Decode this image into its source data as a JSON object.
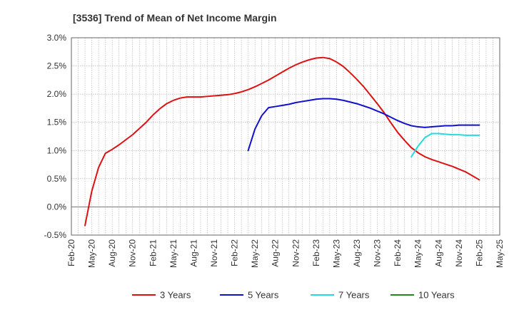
{
  "chart_data": {
    "type": "line",
    "title": "[3536]  Trend of Mean of Net Income Margin",
    "xlabel": "",
    "ylabel": "",
    "ylim": [
      -0.5,
      3.0
    ],
    "y_ticks": [
      -0.5,
      0.0,
      0.5,
      1.0,
      1.5,
      2.0,
      2.5,
      3.0
    ],
    "y_tick_labels": [
      "-0.5%",
      "0.0%",
      "0.5%",
      "1.0%",
      "1.5%",
      "2.0%",
      "2.5%",
      "3.0%"
    ],
    "x_start": "2020-02",
    "x_end": "2025-05",
    "x_tick_labels": [
      "Feb-20",
      "May-20",
      "Aug-20",
      "Nov-20",
      "Feb-21",
      "May-21",
      "Aug-21",
      "Nov-21",
      "Feb-22",
      "May-22",
      "Aug-22",
      "Nov-22",
      "Feb-23",
      "May-23",
      "Aug-23",
      "Nov-23",
      "Feb-24",
      "May-24",
      "Aug-24",
      "Nov-24",
      "Feb-25",
      "May-25"
    ],
    "grid": true,
    "legend_position": "bottom",
    "series": [
      {
        "name": "3 Years",
        "color": "#dd1111",
        "points": [
          [
            "2020-04",
            -0.33
          ],
          [
            "2020-05",
            0.28
          ],
          [
            "2020-06",
            0.7
          ],
          [
            "2020-07",
            0.95
          ],
          [
            "2020-08",
            1.02
          ],
          [
            "2020-09",
            1.1
          ],
          [
            "2020-10",
            1.19
          ],
          [
            "2020-11",
            1.28
          ],
          [
            "2020-12",
            1.39
          ],
          [
            "2021-01",
            1.5
          ],
          [
            "2021-02",
            1.63
          ],
          [
            "2021-03",
            1.74
          ],
          [
            "2021-04",
            1.83
          ],
          [
            "2021-05",
            1.89
          ],
          [
            "2021-06",
            1.93
          ],
          [
            "2021-07",
            1.95
          ],
          [
            "2021-08",
            1.95
          ],
          [
            "2021-09",
            1.95
          ],
          [
            "2021-10",
            1.96
          ],
          [
            "2021-11",
            1.97
          ],
          [
            "2021-12",
            1.98
          ],
          [
            "2022-01",
            1.99
          ],
          [
            "2022-02",
            2.01
          ],
          [
            "2022-03",
            2.04
          ],
          [
            "2022-04",
            2.08
          ],
          [
            "2022-05",
            2.13
          ],
          [
            "2022-06",
            2.19
          ],
          [
            "2022-07",
            2.25
          ],
          [
            "2022-08",
            2.32
          ],
          [
            "2022-09",
            2.39
          ],
          [
            "2022-10",
            2.46
          ],
          [
            "2022-11",
            2.52
          ],
          [
            "2022-12",
            2.57
          ],
          [
            "2023-01",
            2.61
          ],
          [
            "2023-02",
            2.64
          ],
          [
            "2023-03",
            2.65
          ],
          [
            "2023-04",
            2.63
          ],
          [
            "2023-05",
            2.57
          ],
          [
            "2023-06",
            2.49
          ],
          [
            "2023-07",
            2.38
          ],
          [
            "2023-08",
            2.26
          ],
          [
            "2023-09",
            2.13
          ],
          [
            "2023-10",
            1.98
          ],
          [
            "2023-11",
            1.83
          ],
          [
            "2023-12",
            1.67
          ],
          [
            "2024-01",
            1.49
          ],
          [
            "2024-02",
            1.32
          ],
          [
            "2024-03",
            1.18
          ],
          [
            "2024-04",
            1.05
          ],
          [
            "2024-05",
            0.96
          ],
          [
            "2024-06",
            0.89
          ],
          [
            "2024-07",
            0.84
          ],
          [
            "2024-08",
            0.8
          ],
          [
            "2024-09",
            0.76
          ],
          [
            "2024-10",
            0.72
          ],
          [
            "2024-11",
            0.67
          ],
          [
            "2024-12",
            0.62
          ],
          [
            "2025-01",
            0.55
          ],
          [
            "2025-02",
            0.48
          ]
        ]
      },
      {
        "name": "5 Years",
        "color": "#1111cc",
        "points": [
          [
            "2022-04",
            1.0
          ],
          [
            "2022-05",
            1.38
          ],
          [
            "2022-06",
            1.62
          ],
          [
            "2022-07",
            1.76
          ],
          [
            "2022-08",
            1.78
          ],
          [
            "2022-09",
            1.8
          ],
          [
            "2022-10",
            1.82
          ],
          [
            "2022-11",
            1.85
          ],
          [
            "2022-12",
            1.87
          ],
          [
            "2023-01",
            1.89
          ],
          [
            "2023-02",
            1.91
          ],
          [
            "2023-03",
            1.92
          ],
          [
            "2023-04",
            1.92
          ],
          [
            "2023-05",
            1.91
          ],
          [
            "2023-06",
            1.89
          ],
          [
            "2023-07",
            1.86
          ],
          [
            "2023-08",
            1.83
          ],
          [
            "2023-09",
            1.79
          ],
          [
            "2023-10",
            1.75
          ],
          [
            "2023-11",
            1.7
          ],
          [
            "2023-12",
            1.65
          ],
          [
            "2024-01",
            1.59
          ],
          [
            "2024-02",
            1.53
          ],
          [
            "2024-03",
            1.48
          ],
          [
            "2024-04",
            1.44
          ],
          [
            "2024-05",
            1.42
          ],
          [
            "2024-06",
            1.41
          ],
          [
            "2024-07",
            1.42
          ],
          [
            "2024-08",
            1.43
          ],
          [
            "2024-09",
            1.44
          ],
          [
            "2024-10",
            1.44
          ],
          [
            "2024-11",
            1.45
          ],
          [
            "2024-12",
            1.45
          ],
          [
            "2025-01",
            1.45
          ],
          [
            "2025-02",
            1.45
          ]
        ]
      },
      {
        "name": "7 Years",
        "color": "#22dddd",
        "points": [
          [
            "2024-04",
            0.89
          ],
          [
            "2024-05",
            1.08
          ],
          [
            "2024-06",
            1.23
          ],
          [
            "2024-07",
            1.3
          ],
          [
            "2024-08",
            1.3
          ],
          [
            "2024-09",
            1.29
          ],
          [
            "2024-10",
            1.28
          ],
          [
            "2024-11",
            1.28
          ],
          [
            "2024-12",
            1.27
          ],
          [
            "2025-01",
            1.27
          ],
          [
            "2025-02",
            1.27
          ]
        ]
      },
      {
        "name": "10 Years",
        "color": "#228822",
        "points": []
      }
    ]
  }
}
